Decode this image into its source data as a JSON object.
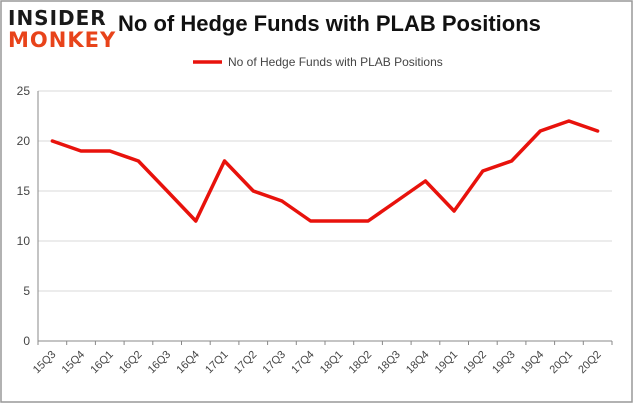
{
  "logo": {
    "line1": "INSIDER",
    "line2": "MONKEY"
  },
  "colors": {
    "series": "#e8120c",
    "grid": "#d9d9d9",
    "axis": "#888888",
    "text": "#444444",
    "logo_accent": "#e8431a"
  },
  "chart_data": {
    "type": "line",
    "title": "No of Hedge Funds with PLAB Positions",
    "categories": [
      "15Q3",
      "15Q4",
      "16Q1",
      "16Q2",
      "16Q3",
      "16Q4",
      "17Q1",
      "17Q2",
      "17Q3",
      "17Q4",
      "18Q1",
      "18Q2",
      "18Q3",
      "18Q4",
      "19Q1",
      "19Q2",
      "19Q3",
      "19Q4",
      "20Q1",
      "20Q2"
    ],
    "series": [
      {
        "name": "No of Hedge Funds with PLAB Positions",
        "values": [
          20,
          19,
          19,
          18,
          15,
          12,
          18,
          15,
          14,
          12,
          12,
          12,
          14,
          16,
          13,
          17,
          18,
          21,
          22,
          21
        ]
      }
    ],
    "ylim": [
      0,
      25
    ],
    "yticks": [
      0,
      5,
      10,
      15,
      20,
      25
    ],
    "grid": true,
    "legend": "top-center",
    "xlabel": "",
    "ylabel": ""
  }
}
